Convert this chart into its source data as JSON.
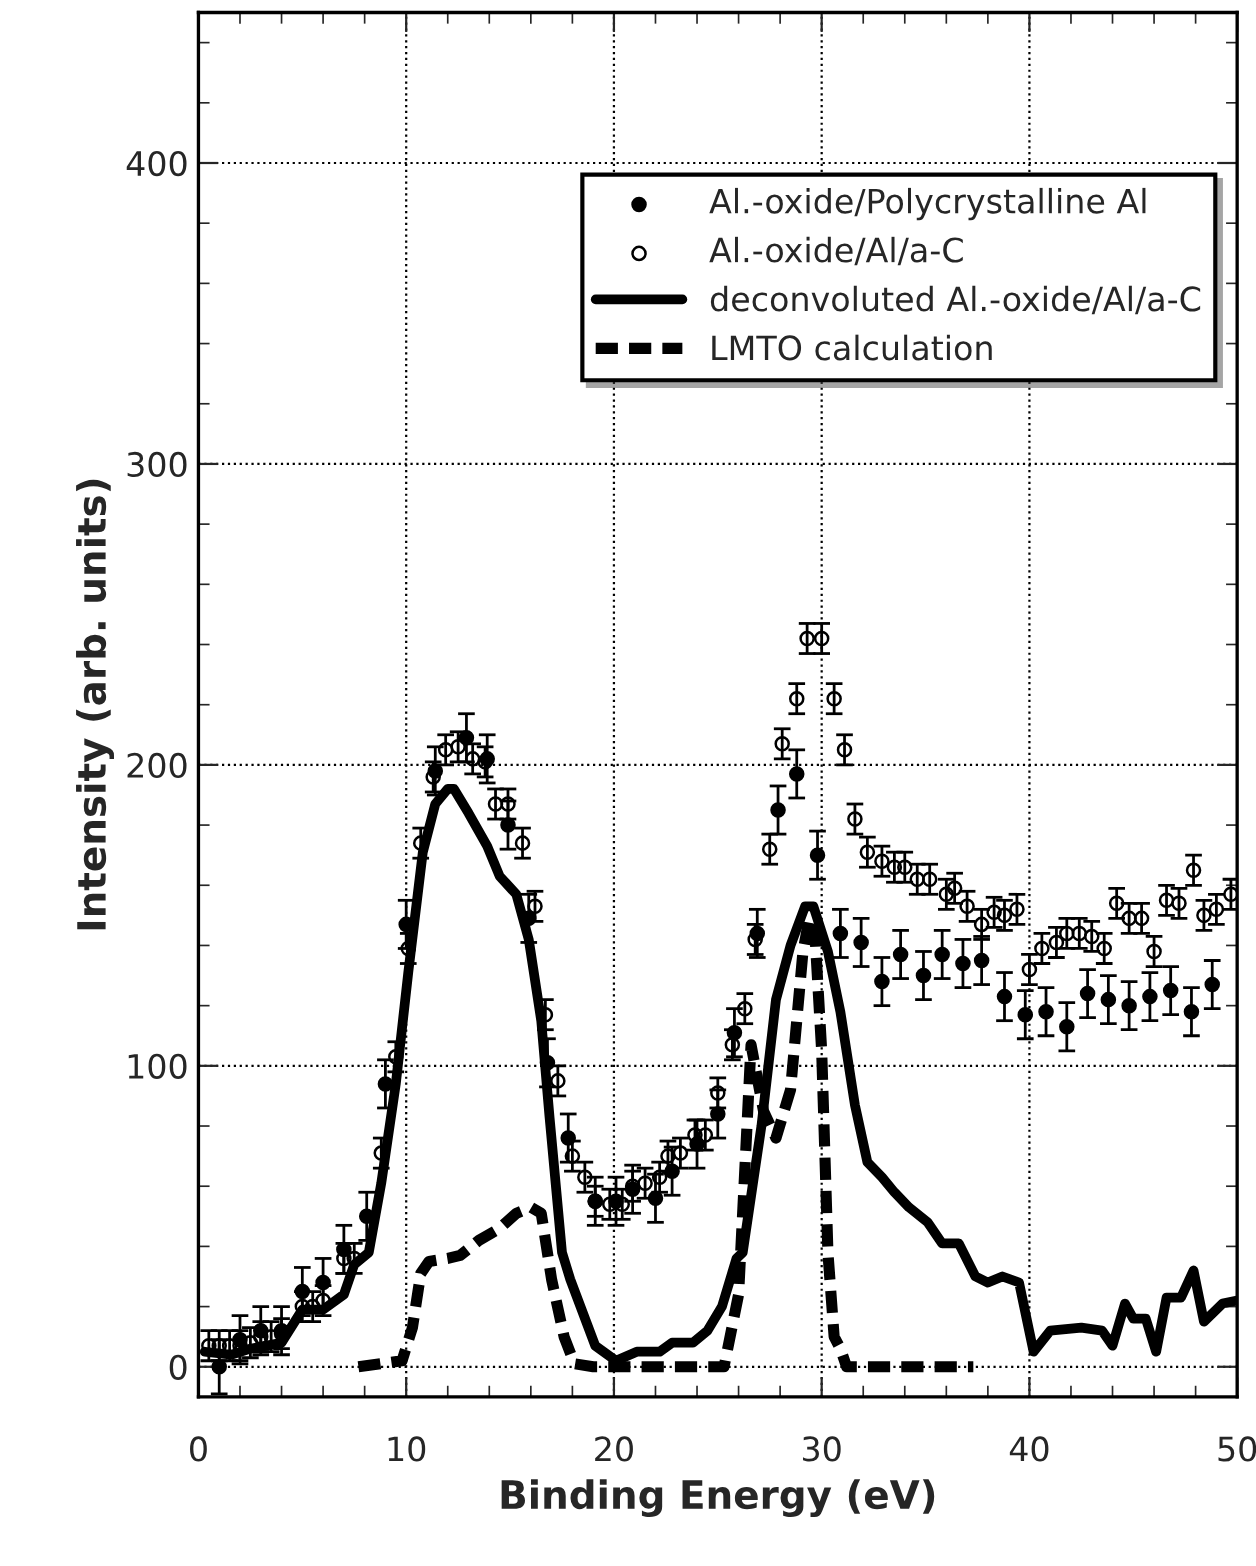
{
  "chart_data": {
    "type": "scatter",
    "xlabel": "Binding Energy (eV)",
    "ylabel": "Intensity (arb. units)",
    "xlim": [
      0,
      50
    ],
    "ylim": [
      -10,
      450
    ],
    "xticks": [
      0,
      10,
      20,
      30,
      40,
      50
    ],
    "yticks": [
      0,
      100,
      200,
      300,
      400
    ],
    "grid": true,
    "legend": "top right",
    "series": [
      {
        "name": "Al.-oxide/Polycrystalline Al",
        "marker": "circle",
        "color": "#000000",
        "x": [
          1,
          2,
          3,
          4,
          5,
          6,
          7,
          8.1,
          9,
          10,
          11.4,
          12.9,
          13.9,
          14.9,
          15.9,
          16.8,
          17.8,
          19.1,
          20.1,
          20.9,
          22,
          22.8,
          24,
          25,
          25.8,
          26.9,
          27.9,
          28.8,
          29.8,
          30.9,
          31.9,
          32.9,
          33.8,
          34.9,
          35.8,
          36.8,
          37.7,
          38.8,
          39.8,
          40.8,
          41.8,
          42.8,
          43.8,
          44.8,
          45.8,
          46.8,
          47.8,
          48.8
        ],
        "values": [
          0,
          9,
          12,
          12,
          25,
          28,
          39,
          50,
          94,
          147,
          198,
          209,
          202,
          180,
          149,
          101,
          76,
          55,
          55,
          59,
          56,
          65,
          74,
          84,
          111,
          144,
          185,
          197,
          170,
          144,
          141,
          128,
          137,
          130,
          137,
          134,
          135,
          123,
          117,
          118,
          113,
          124,
          122,
          120,
          123,
          125,
          118,
          127
        ],
        "errors": [
          9,
          8,
          8,
          8,
          8,
          8,
          8,
          8,
          8,
          8,
          8,
          8,
          8,
          8,
          8,
          8,
          8,
          8,
          8,
          8,
          8,
          8,
          8,
          8,
          8,
          8,
          8,
          8,
          8,
          8,
          8,
          8,
          8,
          8,
          8,
          8,
          8,
          8,
          8,
          8,
          8,
          8,
          8,
          8,
          8,
          8,
          8,
          8
        ]
      },
      {
        "name": "Al.-oxide/Al/a-C",
        "marker": "circle",
        "color": "#000000",
        "x": [
          0.5,
          1,
          1.5,
          2,
          2.5,
          3,
          3.5,
          4,
          5,
          5.5,
          6,
          7,
          7.5,
          8.8,
          9.5,
          10.1,
          10.7,
          11.3,
          11.9,
          12.5,
          13.2,
          13.8,
          14.3,
          14.9,
          15.6,
          16.2,
          16.7,
          17.3,
          18,
          18.6,
          19.1,
          19.8,
          20.4,
          20.9,
          21.5,
          22.2,
          22.6,
          23.2,
          23.9,
          24.4,
          25,
          25.7,
          26.3,
          26.8,
          27.5,
          28.1,
          28.8,
          29.3,
          30,
          30.6,
          31.1,
          31.6,
          32.2,
          32.9,
          33.5,
          34,
          34.6,
          35.2,
          36,
          36.4,
          37,
          37.7,
          38.3,
          38.8,
          39.4,
          40,
          40.6,
          41.3,
          41.8,
          42.4,
          43,
          43.6,
          44.2,
          44.8,
          45.4,
          46,
          46.6,
          47.2,
          47.9,
          48.4,
          49,
          49.7
        ],
        "values": [
          7,
          7,
          7,
          7,
          8,
          10,
          10,
          11,
          20,
          20,
          22,
          36,
          36,
          71,
          103,
          139,
          174,
          196,
          205,
          206,
          202,
          201,
          187,
          187,
          174,
          153,
          117,
          95,
          70,
          63,
          55,
          54,
          54,
          60,
          61,
          63,
          70,
          71,
          77,
          77,
          91,
          107,
          119,
          142,
          172,
          207,
          222,
          242,
          242,
          222,
          205,
          182,
          171,
          168,
          166,
          166,
          162,
          162,
          157,
          159,
          153,
          147,
          151,
          150,
          152,
          132,
          139,
          141,
          144,
          144,
          143,
          139,
          154,
          149,
          149,
          138,
          155,
          154,
          165,
          150,
          152,
          157
        ],
        "errors": [
          5,
          5,
          5,
          5,
          5,
          5,
          5,
          5,
          5,
          5,
          5,
          5,
          5,
          5,
          5,
          5,
          5,
          5,
          5,
          5,
          5,
          5,
          5,
          5,
          5,
          5,
          5,
          5,
          5,
          5,
          5,
          5,
          5,
          5,
          5,
          5,
          5,
          5,
          5,
          5,
          5,
          5,
          5,
          5,
          5,
          5,
          5,
          5,
          5,
          5,
          5,
          5,
          5,
          5,
          5,
          5,
          5,
          5,
          5,
          5,
          5,
          5,
          5,
          5,
          5,
          5,
          5,
          5,
          5,
          5,
          5,
          5,
          5,
          5,
          5,
          5,
          5,
          5,
          5,
          5,
          5,
          5
        ]
      },
      {
        "name": "deconvoluted Al.-oxide/Al/a-C",
        "type": "line",
        "line_style": "solid",
        "color": "#000000",
        "x": [
          0.3,
          1.6,
          2.5,
          4,
          5,
          6,
          7,
          7.5,
          8.2,
          8.8,
          9.5,
          10.1,
          10.8,
          11.4,
          12,
          12.3,
          13,
          13.9,
          14.5,
          15.3,
          15.9,
          16.5,
          16.9,
          17.5,
          17.9,
          19.1,
          20.1,
          21.1,
          22.2,
          22.8,
          23.8,
          24.5,
          25.2,
          25.9,
          26.2,
          27.1,
          27.8,
          28.5,
          29.2,
          29.6,
          30.3,
          30.9,
          31.6,
          32.2,
          32.9,
          33.5,
          34.2,
          35.1,
          35.8,
          36.6,
          37.4,
          38,
          38.7,
          39.5,
          40.2,
          41,
          42.5,
          43.5,
          44,
          44.6,
          45,
          45.6,
          46.1,
          46.6,
          47.3,
          47.9,
          48.4,
          49.3,
          50
        ],
        "values": [
          5,
          4,
          6,
          8,
          19,
          19,
          24,
          34,
          38,
          61,
          94,
          131,
          171,
          187,
          192,
          192,
          184,
          173,
          163,
          157,
          142,
          115,
          83,
          38,
          29,
          7,
          2,
          5,
          5,
          8,
          8,
          12,
          20,
          36,
          38,
          80,
          122,
          140,
          153,
          153,
          138,
          118,
          87,
          68,
          63,
          58,
          53,
          48,
          41,
          41,
          30,
          28,
          30,
          28,
          5,
          12,
          13,
          12,
          7,
          21,
          16,
          16,
          5,
          23,
          23,
          32,
          15,
          21,
          22
        ]
      },
      {
        "name": "LMTO calculation",
        "type": "line",
        "line_style": "dashed",
        "color": "#000000",
        "x": [
          7.7,
          9.8,
          10.3,
          10.7,
          11.1,
          12,
          12.6,
          13.5,
          14.5,
          15.3,
          16,
          16.5,
          17,
          17.6,
          18.1,
          19,
          25.3,
          26,
          26.6,
          27.2,
          27.8,
          28.5,
          29.1,
          29.4,
          29.7,
          30,
          30.3,
          30.6,
          30.9,
          31.2,
          37.3
        ],
        "values": [
          0,
          2,
          13,
          31,
          35,
          36,
          37,
          42,
          46,
          51,
          53,
          51,
          29,
          10,
          1,
          0,
          0,
          24,
          107,
          85,
          76,
          92,
          138,
          149,
          141,
          105,
          38,
          10,
          6,
          0,
          0
        ]
      }
    ]
  }
}
